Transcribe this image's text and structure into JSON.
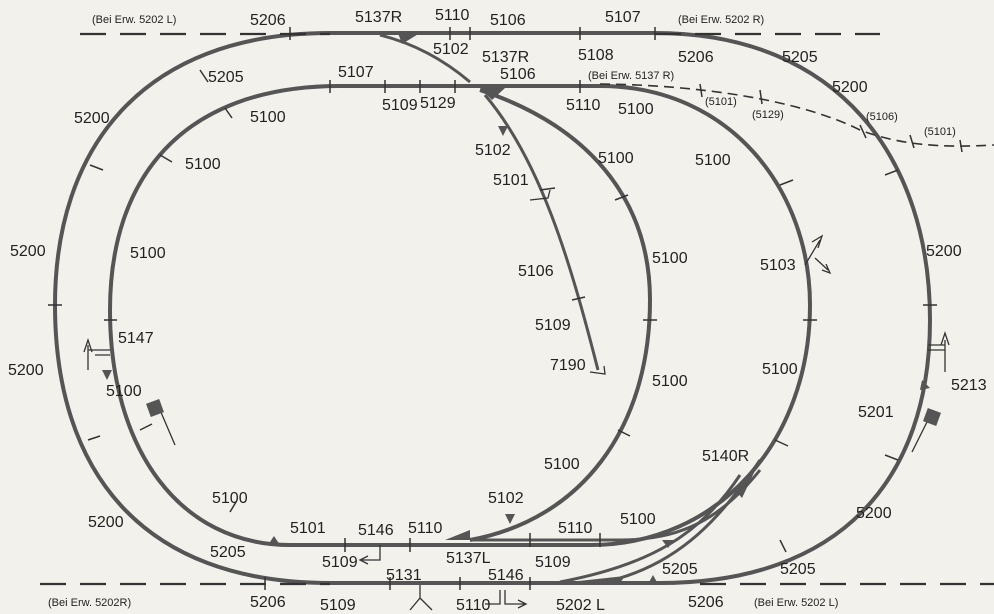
{
  "dashed_notes": {
    "top_left": "(Bei Erw. 5202 L)",
    "top_right": "(Bei Erw. 5202 R)",
    "mid_right": "(Bei Erw. 5137 R)",
    "bottom_left": "(Bei Erw. 5202R)",
    "bottom_right": "(Bei Erw. 5202 L)"
  },
  "small_labels": {
    "b5101a": "(5101)",
    "b5129": "(5129)",
    "b5106": "(5106)",
    "b5101b": "(5101)"
  },
  "labels": {
    "t5206": "5206",
    "t5137R": "5137R",
    "t5110": "5110",
    "t5106": "5106",
    "t5107": "5107",
    "t5102": "5102",
    "t5137R2": "5137R",
    "t5108": "5108",
    "t5206b": "5206",
    "t5205r": "5205",
    "t5205l": "5205",
    "t5107b": "5107",
    "t5106b": "5106",
    "t5200tr": "5200",
    "t5200tl": "5200",
    "t5100a": "5100",
    "t5109": "5109",
    "t5129": "5129",
    "t5110b": "5110",
    "t5100b": "5100",
    "t5100c": "5100",
    "t5100d": "5100",
    "t5100e": "5100",
    "t5102b": "5102",
    "t5101": "5101",
    "t5106c": "5106",
    "t5109b": "5109",
    "t7190": "7190",
    "t5200ml": "5200",
    "t5100f": "5100",
    "t5100g": "5100",
    "t5103": "5103",
    "t5200mr": "5200",
    "t5200ll": "5200",
    "t5147": "5147",
    "t5100h": "5100",
    "t5100i": "5100",
    "t5100j": "5100",
    "t5213": "5213",
    "t5201": "5201",
    "t5100k": "5100",
    "t5140R": "5140R",
    "t5100l": "5100",
    "t5102c": "5102",
    "t5200bl": "5200",
    "t5101b": "5101",
    "t5146": "5146",
    "t5110c": "5110",
    "t5110d": "5110",
    "t5100m": "5100",
    "t5200br": "5200",
    "t5205bl": "5205",
    "t5109c": "5109",
    "t5137L": "5137L",
    "t5109d": "5109",
    "t5131": "5131",
    "t5146b": "5146",
    "t5205bm": "5205",
    "t5205br": "5205",
    "t5206bl": "5206",
    "t5109e": "5109",
    "t5110e": "5110",
    "t5202L": "5202 L",
    "t5206br": "5206"
  }
}
